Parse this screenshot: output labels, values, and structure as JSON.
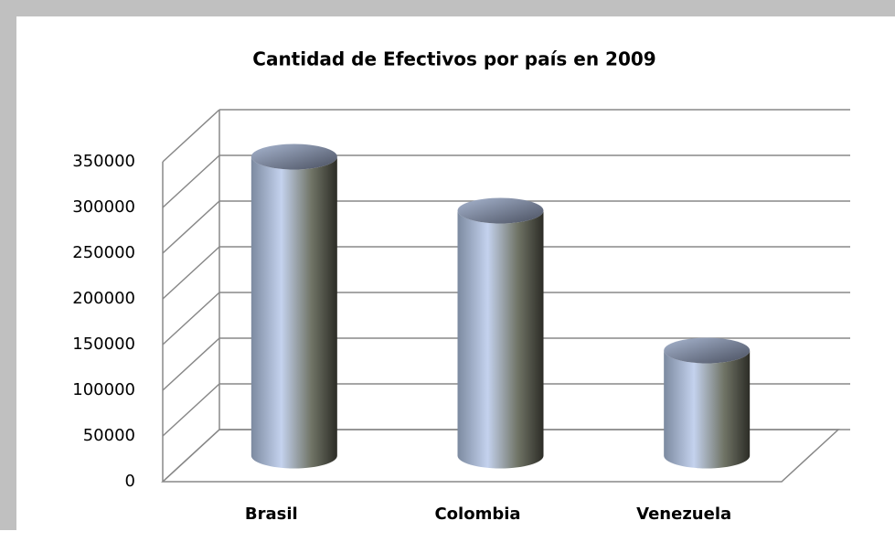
{
  "chart_data": {
    "type": "bar",
    "title": "Cantidad de Efectivos por país en 2009",
    "categories": [
      "Brasil",
      "Colombia",
      "Venezuela"
    ],
    "values": [
      327000,
      268000,
      115000
    ],
    "ylim": [
      0,
      350000
    ],
    "yticks": [
      0,
      50000,
      100000,
      150000,
      200000,
      250000,
      300000,
      350000
    ],
    "grid": true
  }
}
